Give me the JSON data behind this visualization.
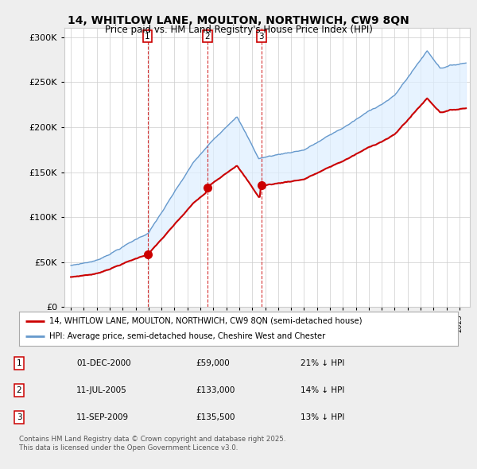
{
  "title": "14, WHITLOW LANE, MOULTON, NORTHWICH, CW9 8QN",
  "subtitle": "Price paid vs. HM Land Registry's House Price Index (HPI)",
  "legend_line1": "14, WHITLOW LANE, MOULTON, NORTHWICH, CW9 8QN (semi-detached house)",
  "legend_line2": "HPI: Average price, semi-detached house, Cheshire West and Chester",
  "footnote": "Contains HM Land Registry data © Crown copyright and database right 2025.\nThis data is licensed under the Open Government Licence v3.0.",
  "price_paid_color": "#cc0000",
  "hpi_color": "#6699cc",
  "hpi_fill_color": "#ddeeff",
  "grid_color": "#cccccc",
  "background_color": "#eeeeee",
  "sale_points": [
    {
      "date_num": 2000.917,
      "value": 59000,
      "label": "1"
    },
    {
      "date_num": 2005.528,
      "value": 133000,
      "label": "2"
    },
    {
      "date_num": 2009.703,
      "value": 135500,
      "label": "3"
    }
  ],
  "table_data": [
    [
      "1",
      "01-DEC-2000",
      "£59,000",
      "21% ↓ HPI"
    ],
    [
      "2",
      "11-JUL-2005",
      "£133,000",
      "14% ↓ HPI"
    ],
    [
      "3",
      "11-SEP-2009",
      "£135,500",
      "13% ↓ HPI"
    ]
  ],
  "ylim": [
    0,
    310000
  ],
  "xlim_start": 1994.5,
  "xlim_end": 2025.8
}
